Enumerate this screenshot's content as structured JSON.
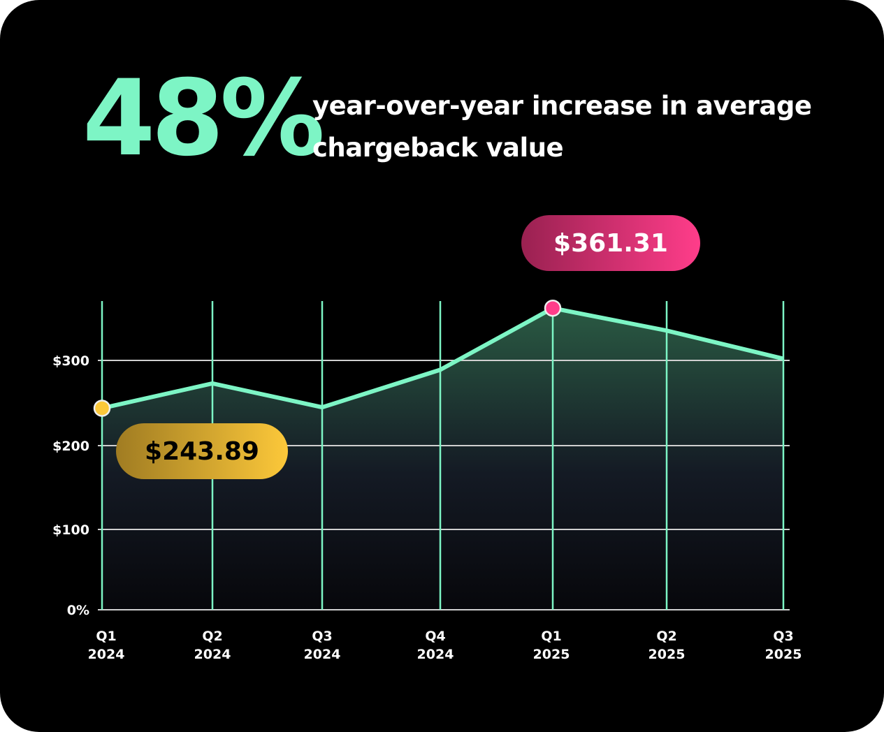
{
  "headline": {
    "stat": "48%",
    "description": "year-over-year increase in average chargeback value"
  },
  "colors": {
    "line": "#7df5c5",
    "highlight_start": "#fcc83a",
    "highlight_peak": "#ff3d8a",
    "background": "#000000"
  },
  "chart_data": {
    "type": "area",
    "categories": [
      [
        "Q1",
        "2024"
      ],
      [
        "Q2",
        "2024"
      ],
      [
        "Q3",
        "2024"
      ],
      [
        "Q4",
        "2024"
      ],
      [
        "Q1",
        "2025"
      ],
      [
        "Q2",
        "2025"
      ],
      [
        "Q3",
        "2025"
      ]
    ],
    "values": [
      243.89,
      273,
      245,
      289,
      361.31,
      335,
      302
    ],
    "y_ticks": [
      {
        "value": 0,
        "label": "0%"
      },
      {
        "value": 100,
        "label": "$100"
      },
      {
        "value": 200,
        "label": "$200"
      },
      {
        "value": 300,
        "label": "$300"
      }
    ],
    "ylim": [
      0,
      360
    ],
    "grid": true,
    "annotations": [
      {
        "index": 0,
        "label": "$243.89",
        "color": "#fcc83a"
      },
      {
        "index": 4,
        "label": "$361.31",
        "color": "#ff3d8a"
      }
    ]
  }
}
